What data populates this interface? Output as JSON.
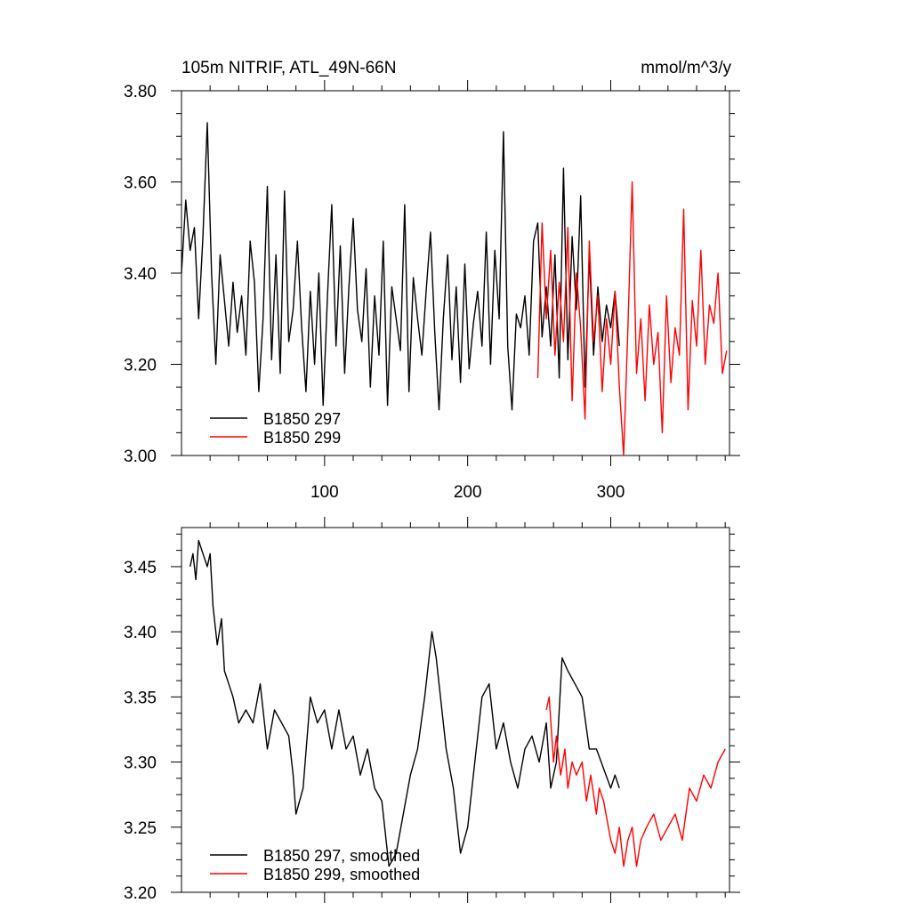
{
  "colors": {
    "black": "#000000",
    "red": "#ff0000",
    "axis": "#000000"
  },
  "chart_data": [
    {
      "type": "line",
      "title_left": "105m NITRIF, ATL_49N-66N",
      "title_right": "mmol/m^3/y",
      "xlim": [
        0,
        383
      ],
      "ylim": [
        3.0,
        3.8
      ],
      "xticks": [
        100,
        200,
        300
      ],
      "xtick_labels": [
        "100",
        "200",
        "300"
      ],
      "yticks": [
        3.0,
        3.2,
        3.4,
        3.6,
        3.8
      ],
      "ytick_labels": [
        "3.00",
        "3.20",
        "3.40",
        "3.60",
        "3.80"
      ],
      "legend": [
        "B1850 297",
        "B1850 299"
      ],
      "series": [
        {
          "name": "B1850 297",
          "color": "#000000",
          "x": [
            0,
            3,
            6,
            9,
            12,
            15,
            18,
            21,
            24,
            27,
            30,
            33,
            36,
            39,
            42,
            45,
            48,
            51,
            54,
            57,
            60,
            63,
            66,
            69,
            72,
            75,
            78,
            81,
            84,
            87,
            90,
            93,
            96,
            99,
            102,
            105,
            108,
            111,
            114,
            117,
            120,
            123,
            126,
            129,
            132,
            135,
            138,
            141,
            144,
            147,
            150,
            153,
            156,
            159,
            162,
            165,
            168,
            171,
            174,
            177,
            180,
            183,
            186,
            189,
            192,
            195,
            198,
            201,
            204,
            207,
            210,
            213,
            216,
            219,
            222,
            225,
            228,
            231,
            234,
            237,
            240,
            243,
            246,
            249,
            252,
            255,
            258,
            261,
            264,
            267,
            270,
            273,
            276,
            279,
            282,
            285,
            288,
            291,
            294,
            297,
            300,
            303,
            306
          ],
          "values": [
            3.4,
            3.56,
            3.45,
            3.5,
            3.3,
            3.48,
            3.73,
            3.4,
            3.2,
            3.44,
            3.34,
            3.24,
            3.38,
            3.27,
            3.35,
            3.22,
            3.47,
            3.38,
            3.14,
            3.3,
            3.59,
            3.21,
            3.44,
            3.18,
            3.58,
            3.25,
            3.32,
            3.47,
            3.28,
            3.14,
            3.36,
            3.2,
            3.4,
            3.11,
            3.35,
            3.55,
            3.24,
            3.46,
            3.18,
            3.37,
            3.52,
            3.32,
            3.25,
            3.41,
            3.15,
            3.35,
            3.22,
            3.47,
            3.11,
            3.37,
            3.3,
            3.23,
            3.55,
            3.14,
            3.39,
            3.3,
            3.22,
            3.36,
            3.49,
            3.27,
            3.1,
            3.3,
            3.44,
            3.21,
            3.37,
            3.16,
            3.42,
            3.19,
            3.29,
            3.36,
            3.24,
            3.49,
            3.2,
            3.45,
            3.3,
            3.71,
            3.24,
            3.1,
            3.31,
            3.28,
            3.35,
            3.22,
            3.47,
            3.51,
            3.26,
            3.37,
            3.24,
            3.44,
            3.17,
            3.63,
            3.21,
            3.48,
            3.32,
            3.57,
            3.15,
            3.44,
            3.22,
            3.37,
            3.25,
            3.33,
            3.28,
            3.36,
            3.24
          ]
        },
        {
          "name": "B1850 299",
          "color": "#ff0000",
          "x": [
            249,
            252,
            255,
            258,
            261,
            264,
            267,
            270,
            273,
            276,
            279,
            282,
            285,
            288,
            291,
            294,
            297,
            300,
            303,
            306,
            309,
            312,
            315,
            318,
            321,
            324,
            327,
            330,
            333,
            336,
            339,
            342,
            345,
            348,
            351,
            354,
            357,
            360,
            363,
            366,
            369,
            372,
            375,
            378,
            381
          ],
          "values": [
            3.17,
            3.51,
            3.3,
            3.45,
            3.22,
            3.38,
            3.25,
            3.5,
            3.12,
            3.4,
            3.28,
            3.08,
            3.47,
            3.25,
            3.35,
            3.14,
            3.3,
            3.2,
            3.36,
            3.15,
            3.0,
            3.28,
            3.6,
            3.18,
            3.3,
            3.12,
            3.33,
            3.2,
            3.27,
            3.05,
            3.35,
            3.16,
            3.28,
            3.22,
            3.54,
            3.1,
            3.34,
            3.24,
            3.45,
            3.2,
            3.33,
            3.29,
            3.4,
            3.18,
            3.23
          ]
        }
      ]
    },
    {
      "type": "line",
      "xlim": [
        0,
        383
      ],
      "ylim": [
        3.2,
        3.48
      ],
      "xticks": [
        100,
        200,
        300
      ],
      "yticks": [
        3.2,
        3.25,
        3.3,
        3.35,
        3.4,
        3.45
      ],
      "ytick_labels": [
        "3.20",
        "3.25",
        "3.30",
        "3.35",
        "3.40",
        "3.45"
      ],
      "legend": [
        "B1850 297, smoothed",
        "B1850 299, smoothed"
      ],
      "series": [
        {
          "name": "B1850 297, smoothed",
          "color": "#000000",
          "x": [
            6,
            8,
            10,
            12,
            15,
            18,
            20,
            22,
            25,
            28,
            30,
            33,
            36,
            40,
            45,
            50,
            55,
            60,
            65,
            70,
            75,
            78,
            80,
            85,
            90,
            95,
            100,
            105,
            110,
            115,
            120,
            125,
            130,
            135,
            140,
            145,
            150,
            155,
            160,
            165,
            170,
            175,
            178,
            180,
            185,
            190,
            195,
            200,
            205,
            210,
            215,
            220,
            225,
            230,
            235,
            240,
            245,
            250,
            255,
            258,
            262,
            266,
            270,
            275,
            280,
            285,
            290,
            300,
            303,
            306
          ],
          "values": [
            3.45,
            3.46,
            3.44,
            3.47,
            3.46,
            3.45,
            3.46,
            3.42,
            3.39,
            3.41,
            3.37,
            3.36,
            3.35,
            3.33,
            3.34,
            3.33,
            3.36,
            3.31,
            3.34,
            3.33,
            3.32,
            3.29,
            3.26,
            3.28,
            3.35,
            3.33,
            3.34,
            3.31,
            3.34,
            3.31,
            3.32,
            3.29,
            3.31,
            3.28,
            3.27,
            3.22,
            3.23,
            3.26,
            3.29,
            3.31,
            3.35,
            3.4,
            3.38,
            3.36,
            3.31,
            3.28,
            3.23,
            3.25,
            3.3,
            3.35,
            3.36,
            3.31,
            3.33,
            3.3,
            3.28,
            3.31,
            3.32,
            3.3,
            3.33,
            3.28,
            3.3,
            3.38,
            3.37,
            3.36,
            3.35,
            3.31,
            3.31,
            3.28,
            3.29,
            3.28
          ]
        },
        {
          "name": "B1850 299, smoothed",
          "color": "#ff0000",
          "x": [
            255,
            257,
            260,
            262,
            265,
            268,
            270,
            273,
            276,
            280,
            283,
            286,
            290,
            292,
            295,
            300,
            303,
            306,
            309,
            312,
            315,
            318,
            321,
            325,
            330,
            335,
            340,
            345,
            350,
            355,
            360,
            365,
            370,
            375,
            380
          ],
          "values": [
            3.34,
            3.35,
            3.3,
            3.32,
            3.29,
            3.31,
            3.28,
            3.3,
            3.29,
            3.3,
            3.27,
            3.29,
            3.26,
            3.28,
            3.27,
            3.24,
            3.23,
            3.25,
            3.22,
            3.24,
            3.25,
            3.22,
            3.24,
            3.25,
            3.26,
            3.24,
            3.25,
            3.26,
            3.24,
            3.28,
            3.27,
            3.29,
            3.28,
            3.3,
            3.31
          ]
        }
      ]
    }
  ]
}
